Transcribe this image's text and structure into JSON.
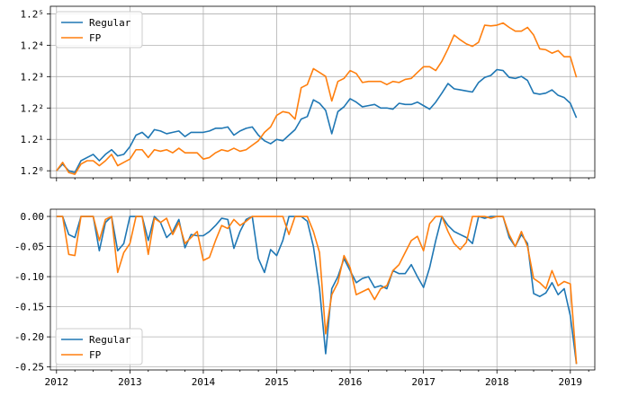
{
  "chart_data": [
    {
      "type": "line",
      "yscale": "log",
      "grid": true,
      "legend_position": "upper-left",
      "x_ticks": [
        "2012",
        "2013",
        "2014",
        "2015",
        "2016",
        "2017",
        "2018",
        "2019"
      ],
      "xlim": [
        "2011-12",
        "2019-05"
      ],
      "y_tick_values": [
        1.0,
        1.2,
        1.44,
        1.728,
        2.0736,
        2.48832
      ],
      "y_tick_labels": [
        "1.2⁰",
        "1.2¹",
        "1.2²",
        "1.2³",
        "1.2⁴",
        "1.2⁵"
      ],
      "ylim": [
        0.96,
        2.6
      ],
      "x": [
        "2012-01",
        "2012-02",
        "2012-03",
        "2012-04",
        "2012-05",
        "2012-06",
        "2012-07",
        "2012-08",
        "2012-09",
        "2012-10",
        "2012-11",
        "2012-12",
        "2013-01",
        "2013-02",
        "2013-03",
        "2013-04",
        "2013-05",
        "2013-06",
        "2013-07",
        "2013-08",
        "2013-09",
        "2013-10",
        "2013-11",
        "2013-12",
        "2014-01",
        "2014-02",
        "2014-03",
        "2014-04",
        "2014-05",
        "2014-06",
        "2014-07",
        "2014-08",
        "2014-09",
        "2014-10",
        "2014-11",
        "2014-12",
        "2015-01",
        "2015-02",
        "2015-03",
        "2015-04",
        "2015-05",
        "2015-06",
        "2015-07",
        "2015-08",
        "2015-09",
        "2015-10",
        "2015-11",
        "2015-12",
        "2016-01",
        "2016-02",
        "2016-03",
        "2016-04",
        "2016-05",
        "2016-06",
        "2016-07",
        "2016-08",
        "2016-09",
        "2016-10",
        "2016-11",
        "2016-12",
        "2017-01",
        "2017-02",
        "2017-03",
        "2017-04",
        "2017-05",
        "2017-06",
        "2017-07",
        "2017-08",
        "2017-09",
        "2017-10",
        "2017-11",
        "2017-12",
        "2018-01",
        "2018-02",
        "2018-03",
        "2018-04",
        "2018-05",
        "2018-06",
        "2018-07",
        "2018-08",
        "2018-09",
        "2018-10",
        "2018-11",
        "2018-12",
        "2019-01",
        "2019-02"
      ],
      "series": [
        {
          "name": "Regular",
          "color": "#1f77b4",
          "values": [
            1.0,
            1.04,
            1.0,
            0.99,
            1.06,
            1.08,
            1.1,
            1.06,
            1.1,
            1.13,
            1.09,
            1.1,
            1.15,
            1.23,
            1.25,
            1.21,
            1.27,
            1.26,
            1.24,
            1.25,
            1.26,
            1.22,
            1.25,
            1.25,
            1.25,
            1.26,
            1.28,
            1.28,
            1.29,
            1.23,
            1.26,
            1.28,
            1.29,
            1.23,
            1.19,
            1.17,
            1.2,
            1.19,
            1.23,
            1.27,
            1.35,
            1.37,
            1.51,
            1.48,
            1.42,
            1.24,
            1.41,
            1.45,
            1.52,
            1.49,
            1.45,
            1.46,
            1.47,
            1.44,
            1.44,
            1.43,
            1.48,
            1.47,
            1.47,
            1.49,
            1.46,
            1.43,
            1.49,
            1.57,
            1.66,
            1.61,
            1.6,
            1.59,
            1.58,
            1.67,
            1.72,
            1.74,
            1.8,
            1.79,
            1.72,
            1.71,
            1.73,
            1.69,
            1.57,
            1.56,
            1.57,
            1.6,
            1.55,
            1.53,
            1.48,
            1.36
          ]
        },
        {
          "name": "FP",
          "color": "#ff7f0e",
          "values": [
            1.0,
            1.05,
            0.99,
            0.98,
            1.04,
            1.06,
            1.06,
            1.03,
            1.06,
            1.1,
            1.03,
            1.05,
            1.07,
            1.13,
            1.13,
            1.08,
            1.13,
            1.12,
            1.13,
            1.11,
            1.14,
            1.11,
            1.11,
            1.11,
            1.07,
            1.08,
            1.11,
            1.13,
            1.12,
            1.14,
            1.12,
            1.13,
            1.16,
            1.19,
            1.25,
            1.29,
            1.38,
            1.41,
            1.4,
            1.35,
            1.62,
            1.65,
            1.81,
            1.77,
            1.73,
            1.5,
            1.68,
            1.71,
            1.79,
            1.76,
            1.67,
            1.68,
            1.68,
            1.68,
            1.65,
            1.68,
            1.67,
            1.7,
            1.71,
            1.77,
            1.83,
            1.83,
            1.79,
            1.89,
            2.03,
            2.2,
            2.14,
            2.09,
            2.06,
            2.11,
            2.33,
            2.32,
            2.33,
            2.36,
            2.3,
            2.25,
            2.25,
            2.3,
            2.2,
            2.03,
            2.02,
            1.98,
            2.01,
            1.94,
            1.94,
            1.72
          ]
        }
      ]
    },
    {
      "type": "line",
      "grid": true,
      "legend_position": "lower-left",
      "x_ticks": [
        "2012",
        "2013",
        "2014",
        "2015",
        "2016",
        "2017",
        "2018",
        "2019"
      ],
      "xlim": [
        "2011-12",
        "2019-05"
      ],
      "y_ticks": [
        "0.00",
        "-0.05",
        "-0.10",
        "-0.15",
        "-0.20",
        "-0.25"
      ],
      "ylim": [
        -0.255,
        0.012
      ],
      "x": [
        "2012-01",
        "2012-02",
        "2012-03",
        "2012-04",
        "2012-05",
        "2012-06",
        "2012-07",
        "2012-08",
        "2012-09",
        "2012-10",
        "2012-11",
        "2012-12",
        "2013-01",
        "2013-02",
        "2013-03",
        "2013-04",
        "2013-05",
        "2013-06",
        "2013-07",
        "2013-08",
        "2013-09",
        "2013-10",
        "2013-11",
        "2013-12",
        "2014-01",
        "2014-02",
        "2014-03",
        "2014-04",
        "2014-05",
        "2014-06",
        "2014-07",
        "2014-08",
        "2014-09",
        "2014-10",
        "2014-11",
        "2014-12",
        "2015-01",
        "2015-02",
        "2015-03",
        "2015-04",
        "2015-05",
        "2015-06",
        "2015-07",
        "2015-08",
        "2015-09",
        "2015-10",
        "2015-11",
        "2015-12",
        "2016-01",
        "2016-02",
        "2016-03",
        "2016-04",
        "2016-05",
        "2016-06",
        "2016-07",
        "2016-08",
        "2016-09",
        "2016-10",
        "2016-11",
        "2016-12",
        "2017-01",
        "2017-02",
        "2017-03",
        "2017-04",
        "2017-05",
        "2017-06",
        "2017-07",
        "2017-08",
        "2017-09",
        "2017-10",
        "2017-11",
        "2017-12",
        "2018-01",
        "2018-02",
        "2018-03",
        "2018-04",
        "2018-05",
        "2018-06",
        "2018-07",
        "2018-08",
        "2018-09",
        "2018-10",
        "2018-11",
        "2018-12",
        "2019-01",
        "2019-02"
      ],
      "series": [
        {
          "name": "Regular",
          "color": "#1f77b4",
          "values": [
            0.0,
            0.0,
            -0.03,
            -0.035,
            0.0,
            0.0,
            0.0,
            -0.057,
            -0.01,
            0.0,
            -0.057,
            -0.045,
            0.0,
            0.0,
            0.0,
            -0.04,
            0.0,
            -0.01,
            -0.035,
            -0.025,
            -0.005,
            -0.052,
            -0.03,
            -0.032,
            -0.032,
            -0.025,
            -0.015,
            -0.003,
            -0.005,
            -0.053,
            -0.025,
            -0.005,
            0.0,
            -0.07,
            -0.093,
            -0.055,
            -0.065,
            -0.04,
            0.0,
            0.0,
            0.0,
            -0.008,
            -0.05,
            -0.12,
            -0.228,
            -0.12,
            -0.1,
            -0.07,
            -0.09,
            -0.11,
            -0.103,
            -0.1,
            -0.118,
            -0.115,
            -0.12,
            -0.09,
            -0.095,
            -0.095,
            -0.08,
            -0.1,
            -0.118,
            -0.085,
            -0.04,
            0.0,
            -0.015,
            -0.025,
            -0.03,
            -0.035,
            -0.045,
            0.0,
            -0.003,
            0.0,
            0.0,
            0.0,
            -0.035,
            -0.05,
            -0.03,
            -0.045,
            -0.128,
            -0.133,
            -0.127,
            -0.11,
            -0.13,
            -0.12,
            -0.165,
            -0.245
          ]
        },
        {
          "name": "FP",
          "color": "#ff7f0e",
          "values": [
            0.0,
            0.0,
            -0.063,
            -0.065,
            0.0,
            0.0,
            0.0,
            -0.04,
            -0.005,
            0.0,
            -0.093,
            -0.06,
            -0.045,
            0.0,
            0.0,
            -0.063,
            -0.003,
            -0.01,
            -0.003,
            -0.03,
            -0.01,
            -0.045,
            -0.035,
            -0.025,
            -0.073,
            -0.068,
            -0.04,
            -0.015,
            -0.02,
            -0.005,
            -0.015,
            -0.008,
            0.0,
            0.0,
            0.0,
            0.0,
            0.0,
            0.0,
            -0.03,
            0.0,
            0.0,
            0.0,
            -0.025,
            -0.06,
            -0.195,
            -0.13,
            -0.11,
            -0.065,
            -0.085,
            -0.13,
            -0.125,
            -0.12,
            -0.138,
            -0.12,
            -0.115,
            -0.09,
            -0.08,
            -0.06,
            -0.04,
            -0.033,
            -0.057,
            -0.012,
            0.0,
            0.0,
            -0.025,
            -0.045,
            -0.055,
            -0.043,
            0.0,
            0.0,
            0.0,
            -0.003,
            0.0,
            0.0,
            -0.03,
            -0.05,
            -0.025,
            -0.05,
            -0.103,
            -0.11,
            -0.12,
            -0.09,
            -0.115,
            -0.108,
            -0.112,
            -0.245
          ]
        }
      ]
    }
  ]
}
